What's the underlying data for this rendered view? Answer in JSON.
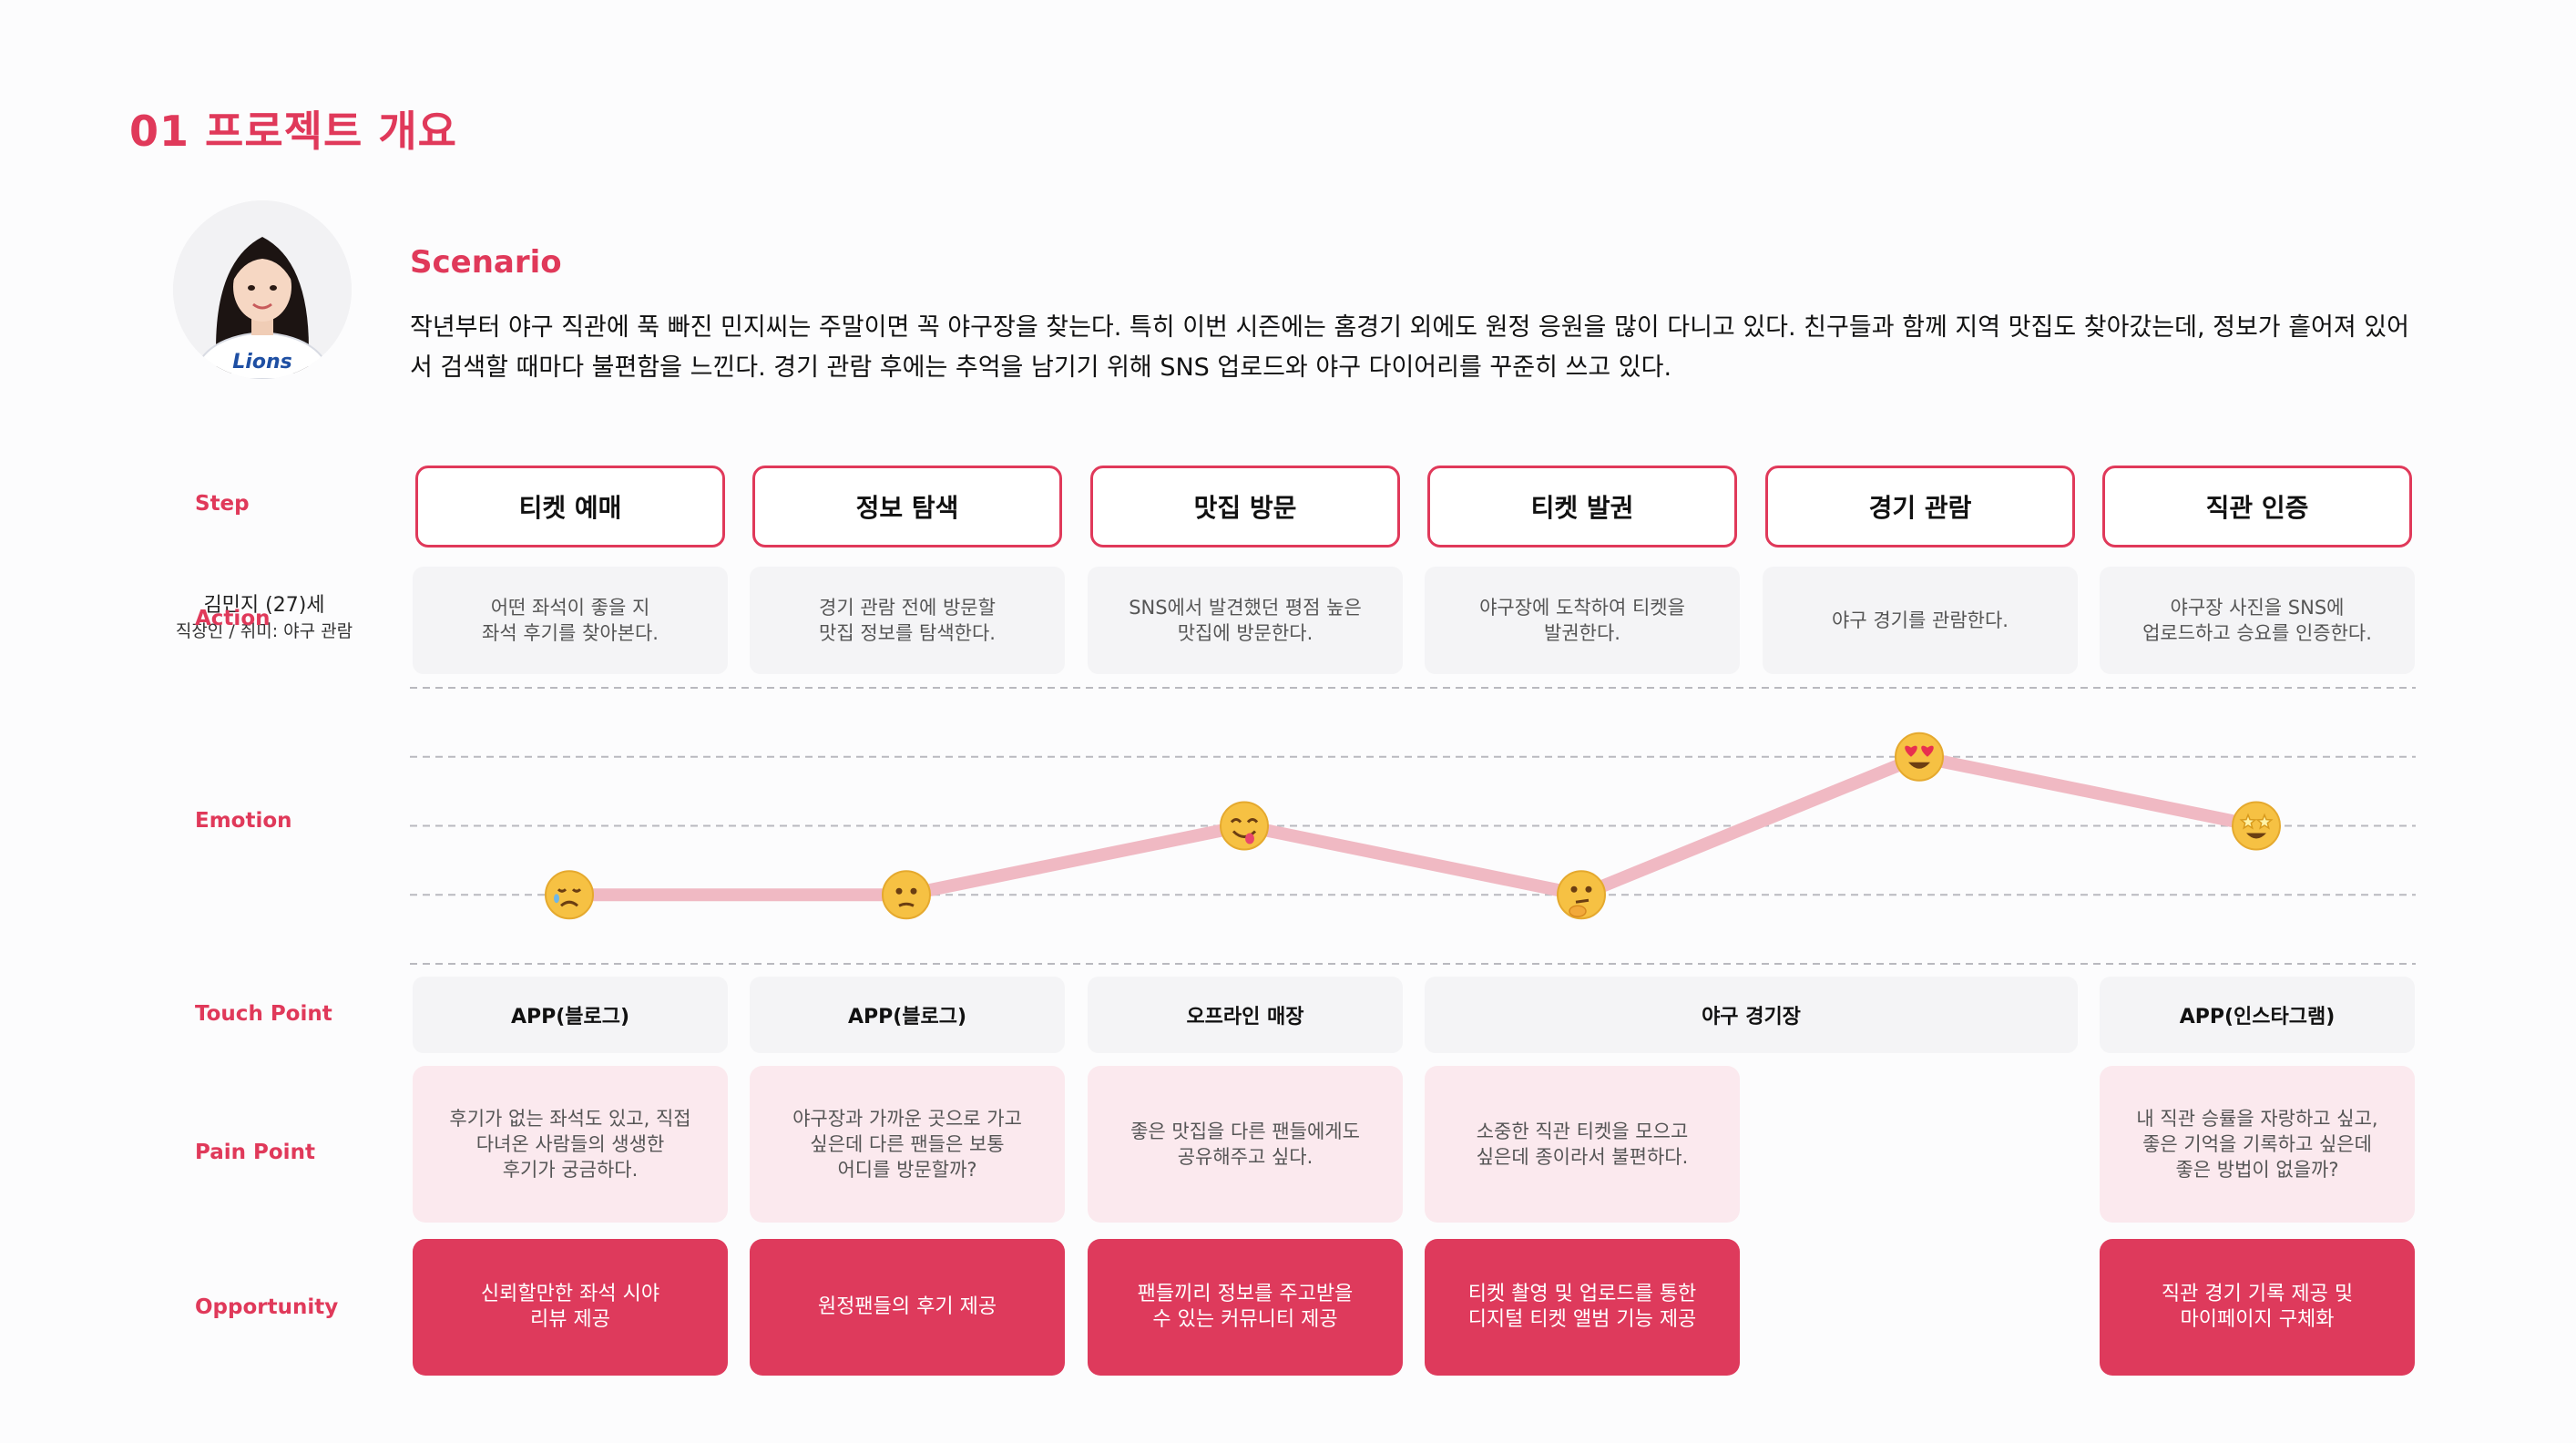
{
  "page": {
    "title": "01 프로젝트 개요"
  },
  "persona": {
    "name": "김민지 (27)세",
    "desc": "직장인 / 취미: 야구 관람",
    "shirt_text": "Lions"
  },
  "scenario": {
    "heading": "Scenario",
    "text": "작년부터 야구 직관에 푹 빠진 민지씨는 주말이면 꼭 야구장을 찾는다. 특히 이번 시즌에는 홈경기 외에도 원정 응원을 많이 다니고 있다. 친구들과 함께 지역 맛집도 찾아갔는데, 정보가 흩어져 있어서 검색할 때마다 불편함을 느낀다. 경기 관람 후에는 추억을 남기기 위해 SNS 업로드와 야구 다이어리를 꾸준히 쓰고 있다."
  },
  "labels": {
    "step": "Step",
    "action": "Action",
    "emotion": "Emotion",
    "touch_point": "Touch Point",
    "pain_point": "Pain Point",
    "opportunity": "Opportunity"
  },
  "steps": [
    "티켓 예매",
    "정보 탐색",
    "맛집 방문",
    "티켓 발권",
    "경기 관람",
    "직관 인증"
  ],
  "actions": [
    "어떤 좌석이 좋을 지\n좌석 후기를 찾아본다.",
    "경기 관람 전에 방문할\n맛집 정보를 탐색한다.",
    "SNS에서 발견했던 평점 높은\n맛집에 방문한다.",
    "야구장에 도착하여 티켓을\n발권한다.",
    "야구 경기를 관람한다.",
    "야구장 사진을 SNS에\n업로드하고 승요를 인증한다."
  ],
  "touch_points": [
    "APP(블로그)",
    "APP(블로그)",
    "오프라인 매장",
    "야구 경기장",
    "APP(인스타그램)"
  ],
  "pain_points": [
    "후기가 없는 좌석도 있고, 직접\n다녀온 사람들의 생생한\n후기가 궁금하다.",
    "야구장과 가까운 곳으로 가고\n싶은데 다른 팬들은 보통\n어디를 방문할까?",
    "좋은 맛집을 다른 팬들에게도\n공유해주고 싶다.",
    "소중한 직관 티켓을 모으고\n싶은데 종이라서 불편하다.",
    "내 직관 승률을 자랑하고 싶고,\n좋은 기억을 기록하고 싶은데\n좋은 방법이 없을까?"
  ],
  "opportunities": [
    "신뢰할만한 좌석 시야\n리뷰 제공",
    "원정팬들의 후기 제공",
    "팬들끼리 정보를 주고받을\n수 있는 커뮤니티 제공",
    "티켓 촬영 및 업로드를 통한\n디지털 티켓 앨범 기능 제공",
    "직관 경기 기록 제공 및\n마이페이지 구체화"
  ],
  "chart_data": {
    "type": "line",
    "categories": [
      "티켓 예매",
      "정보 탐색",
      "맛집 방문",
      "티켓 발권",
      "경기 관람",
      "직관 인증"
    ],
    "series": [
      {
        "values": [
          1,
          1,
          2,
          1,
          3,
          2
        ],
        "markers": [
          "sad-face",
          "confused-face",
          "yum-face",
          "thinking-face",
          "heart-eyes-face",
          "star-eyes-face"
        ]
      }
    ],
    "ylim": [
      0,
      4
    ],
    "grid": true,
    "grid_style": "dashed",
    "line_color": "#f0b9c3",
    "marker_color": "#f6c143",
    "legend": "none"
  },
  "colors": {
    "accent": "#e0395a",
    "opportunity_bg": "#de3a5c",
    "pain_bg": "#fbe9ee",
    "neutral_bg": "#f4f4f6",
    "emotion_line": "#f0b9c3"
  }
}
